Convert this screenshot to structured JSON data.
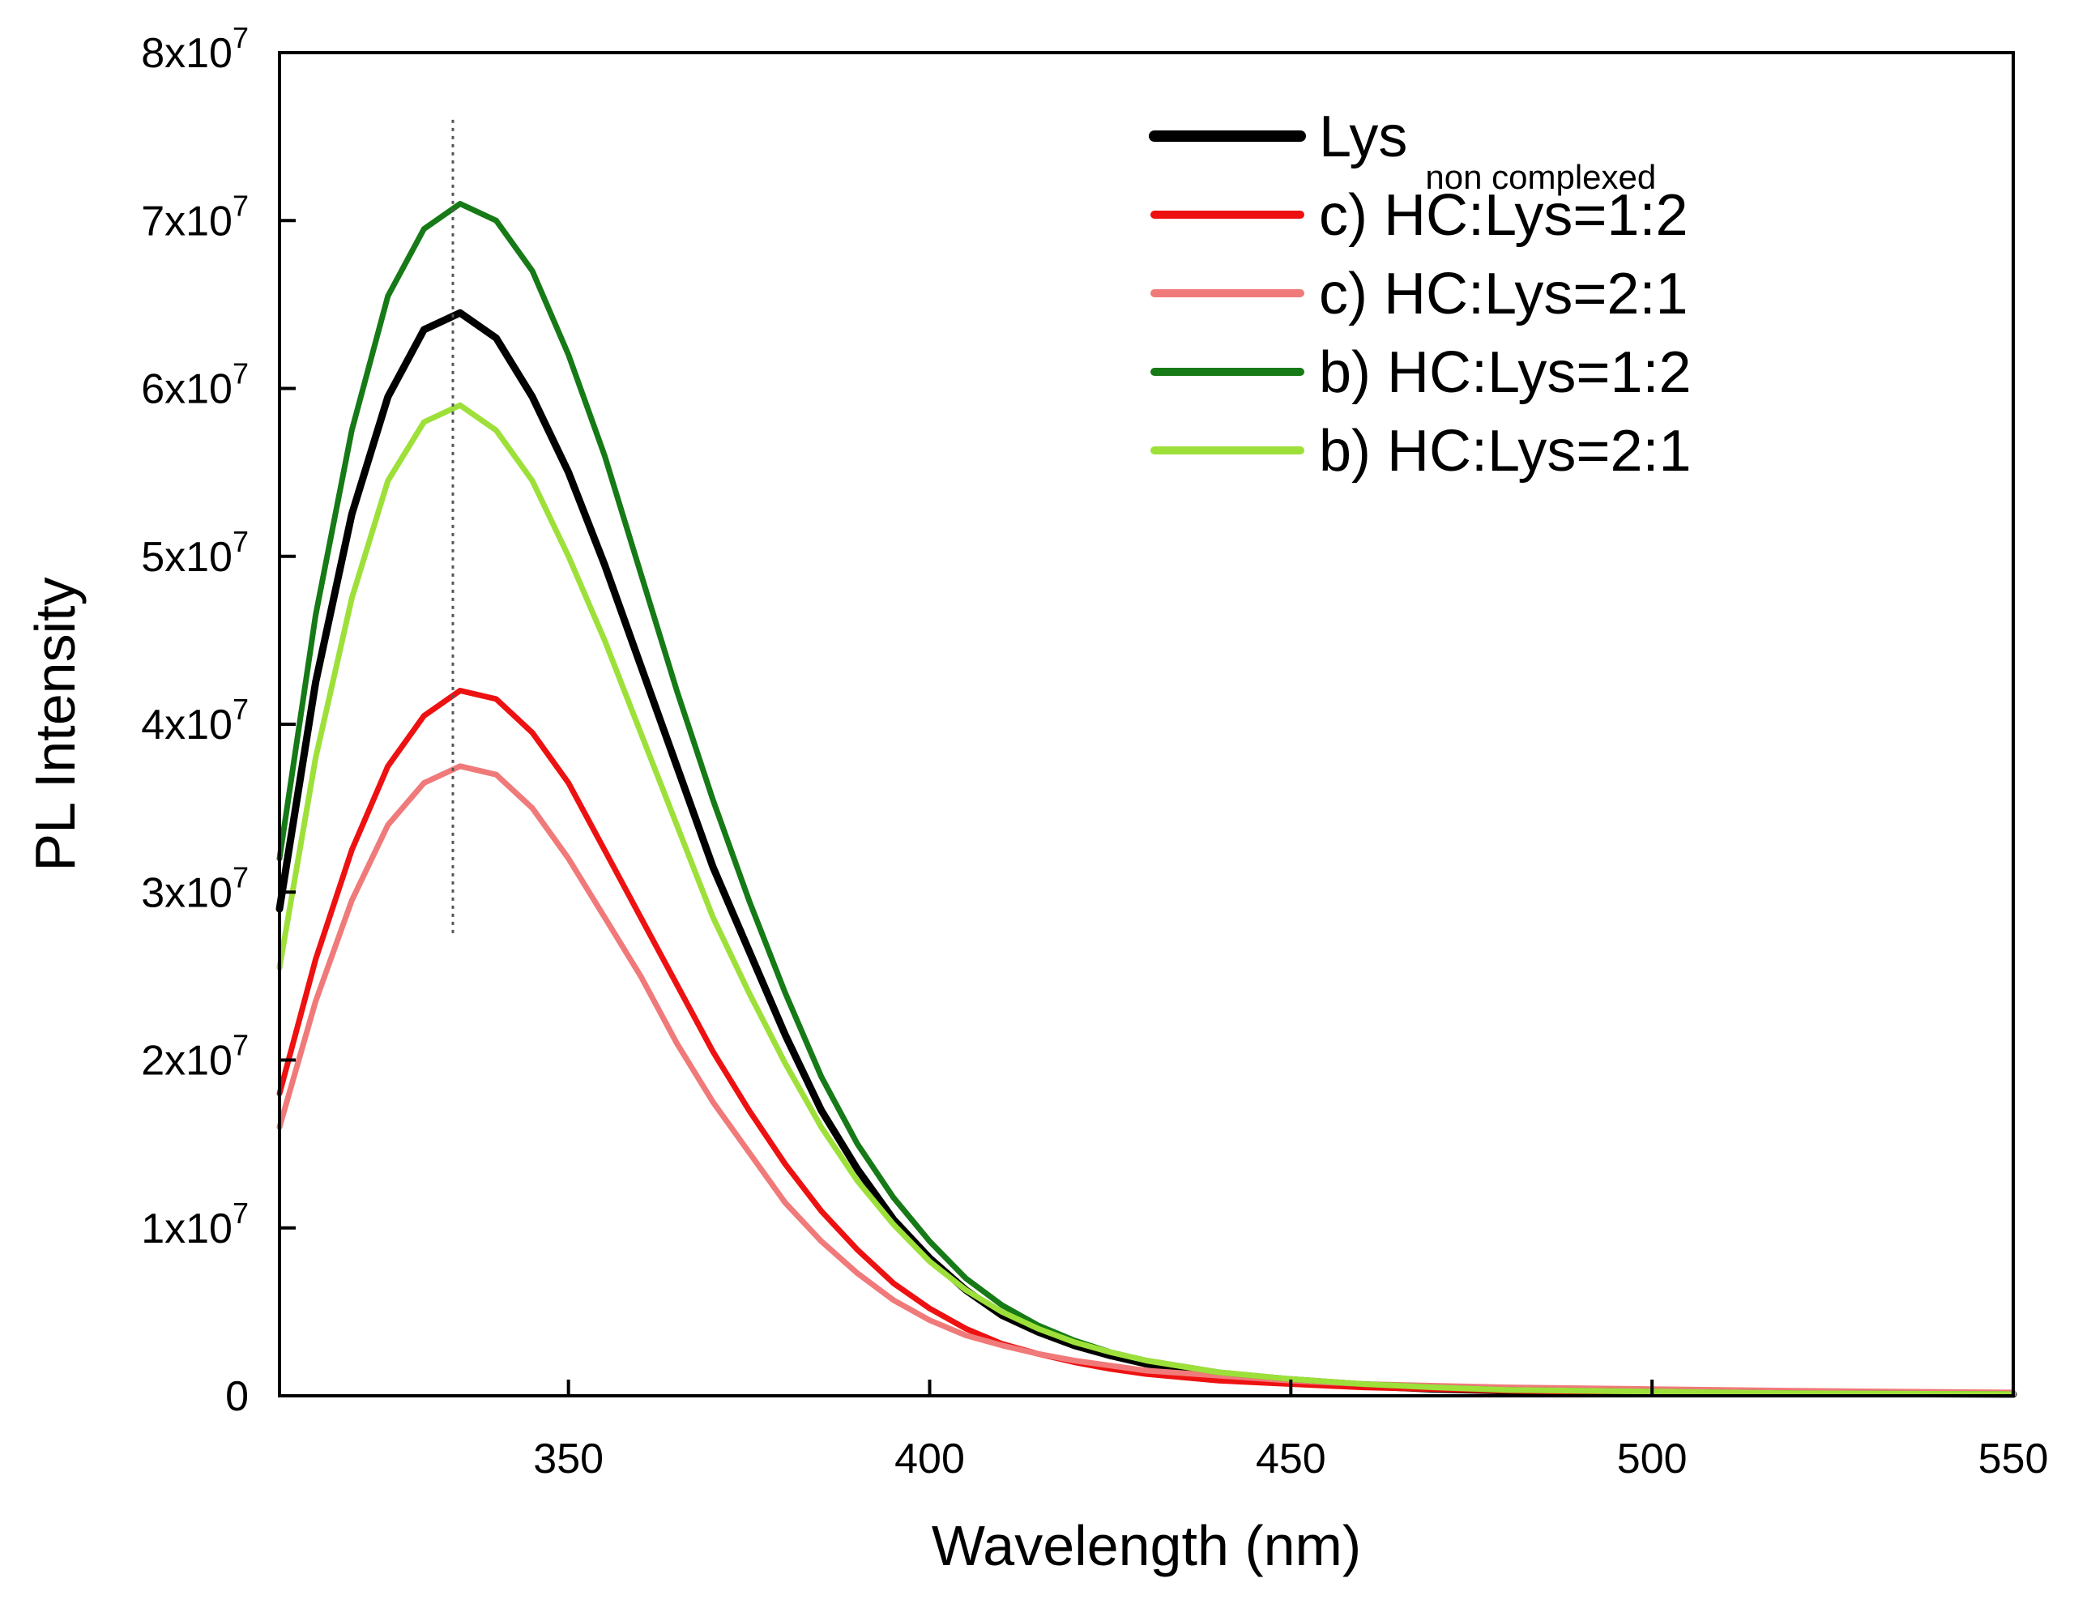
{
  "chart_data": {
    "type": "line",
    "title": "",
    "xlabel": "Wavelength (nm)",
    "ylabel": "PL Intensity",
    "xlim": [
      310,
      550
    ],
    "ylim": [
      0,
      80000000
    ],
    "x_ticks": [
      350,
      400,
      450,
      500,
      550
    ],
    "x_tick_labels": [
      "350",
      "400",
      "450",
      "500",
      "550"
    ],
    "y_ticks": [
      0,
      10000000,
      20000000,
      30000000,
      40000000,
      50000000,
      60000000,
      70000000,
      80000000
    ],
    "y_tick_labels": [
      {
        "base": "0",
        "exp": ""
      },
      {
        "base": "1x10",
        "exp": "7"
      },
      {
        "base": "2x10",
        "exp": "7"
      },
      {
        "base": "3x10",
        "exp": "7"
      },
      {
        "base": "4x10",
        "exp": "7"
      },
      {
        "base": "5x10",
        "exp": "7"
      },
      {
        "base": "6x10",
        "exp": "7"
      },
      {
        "base": "7x10",
        "exp": "7"
      },
      {
        "base": "8x10",
        "exp": "7"
      }
    ],
    "grid": false,
    "legend_position": "top-right",
    "annotations": [
      {
        "type": "vertical-dotted-line",
        "x": 334,
        "y_range": [
          27500000,
          76000000
        ]
      }
    ],
    "x": [
      310,
      315,
      320,
      325,
      330,
      335,
      340,
      345,
      350,
      355,
      360,
      365,
      370,
      375,
      380,
      385,
      390,
      395,
      400,
      405,
      410,
      415,
      420,
      425,
      430,
      440,
      450,
      460,
      470,
      480,
      500,
      520,
      550
    ],
    "series": [
      {
        "name": "Lys",
        "name_sub": "non complexed",
        "color": "#000000",
        "width": 9,
        "values": [
          29.0,
          42.5,
          52.5,
          59.5,
          63.5,
          64.5,
          63.0,
          59.5,
          55.0,
          49.5,
          43.5,
          37.5,
          31.5,
          26.5,
          21.5,
          17.0,
          13.5,
          10.5,
          8.2,
          6.3,
          4.8,
          3.8,
          3.0,
          2.4,
          1.9,
          1.3,
          0.9,
          0.6,
          0.4,
          0.3,
          0.2,
          0.15,
          0.1
        ]
      },
      {
        "name": "c) HC:Lys=1:2",
        "color": "#ee1111",
        "width": 7,
        "values": [
          18.0,
          26.0,
          32.5,
          37.5,
          40.5,
          42.0,
          41.5,
          39.5,
          36.5,
          32.5,
          28.5,
          24.5,
          20.5,
          17.0,
          13.8,
          11.0,
          8.7,
          6.7,
          5.2,
          4.0,
          3.1,
          2.5,
          2.0,
          1.6,
          1.3,
          0.9,
          0.7,
          0.5,
          0.4,
          0.3,
          0.2,
          0.15,
          0.1
        ]
      },
      {
        "name": "c) HC:Lys=2:1",
        "color": "#f07a7a",
        "width": 7,
        "values": [
          16.0,
          23.5,
          29.5,
          34.0,
          36.5,
          37.5,
          37.0,
          35.0,
          32.0,
          28.5,
          25.0,
          21.0,
          17.5,
          14.5,
          11.5,
          9.2,
          7.3,
          5.7,
          4.5,
          3.6,
          3.0,
          2.5,
          2.1,
          1.8,
          1.5,
          1.2,
          0.9,
          0.7,
          0.6,
          0.5,
          0.4,
          0.3,
          0.2
        ]
      },
      {
        "name": "b) HC:Lys=1:2",
        "color": "#167a16",
        "width": 7,
        "values": [
          32.0,
          46.5,
          57.5,
          65.5,
          69.5,
          71.0,
          70.0,
          67.0,
          62.0,
          56.0,
          49.0,
          42.0,
          35.5,
          29.5,
          24.0,
          19.0,
          15.0,
          11.8,
          9.2,
          7.0,
          5.4,
          4.2,
          3.3,
          2.6,
          2.1,
          1.4,
          1.0,
          0.7,
          0.5,
          0.35,
          0.25,
          0.15,
          0.1
        ]
      },
      {
        "name": "b) HC:Lys=2:1",
        "color": "#9ee03a",
        "width": 7,
        "values": [
          25.5,
          38.0,
          47.5,
          54.5,
          58.0,
          59.0,
          57.5,
          54.5,
          50.0,
          45.0,
          39.5,
          34.0,
          28.5,
          24.0,
          19.8,
          16.0,
          12.8,
          10.2,
          8.0,
          6.3,
          5.0,
          4.0,
          3.2,
          2.6,
          2.1,
          1.4,
          1.0,
          0.7,
          0.5,
          0.35,
          0.25,
          0.15,
          0.1
        ]
      }
    ],
    "y_unit_factor": 1000000
  }
}
